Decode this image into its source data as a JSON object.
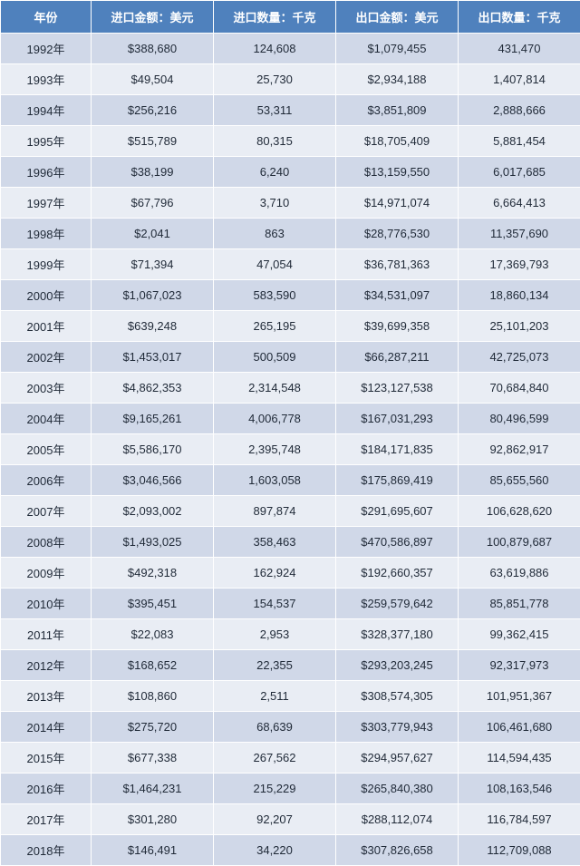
{
  "table": {
    "header_bg": "#4f81bd",
    "header_color": "#ffffff",
    "row_odd_bg": "#d0d8e8",
    "row_even_bg": "#e9edf4",
    "border_color": "#ffffff",
    "font_size": 13,
    "columns": [
      {
        "key": "year",
        "label": "年份",
        "align": "center"
      },
      {
        "key": "import_value",
        "label": "进口金额：美元",
        "align": "center"
      },
      {
        "key": "import_qty",
        "label": "进口数量：千克",
        "align": "center"
      },
      {
        "key": "export_value",
        "label": "出口金额：美元",
        "align": "center"
      },
      {
        "key": "export_qty",
        "label": "出口数量：千克",
        "align": "center"
      }
    ],
    "rows": [
      {
        "year": "1992年",
        "import_value": "$388,680",
        "import_qty": "124,608",
        "export_value": "$1,079,455",
        "export_qty": "431,470"
      },
      {
        "year": "1993年",
        "import_value": "$49,504",
        "import_qty": "25,730",
        "export_value": "$2,934,188",
        "export_qty": "1,407,814"
      },
      {
        "year": "1994年",
        "import_value": "$256,216",
        "import_qty": "53,311",
        "export_value": "$3,851,809",
        "export_qty": "2,888,666"
      },
      {
        "year": "1995年",
        "import_value": "$515,789",
        "import_qty": "80,315",
        "export_value": "$18,705,409",
        "export_qty": "5,881,454"
      },
      {
        "year": "1996年",
        "import_value": "$38,199",
        "import_qty": "6,240",
        "export_value": "$13,159,550",
        "export_qty": "6,017,685"
      },
      {
        "year": "1997年",
        "import_value": "$67,796",
        "import_qty": "3,710",
        "export_value": "$14,971,074",
        "export_qty": "6,664,413"
      },
      {
        "year": "1998年",
        "import_value": "$2,041",
        "import_qty": "863",
        "export_value": "$28,776,530",
        "export_qty": "11,357,690"
      },
      {
        "year": "1999年",
        "import_value": "$71,394",
        "import_qty": "47,054",
        "export_value": "$36,781,363",
        "export_qty": "17,369,793"
      },
      {
        "year": "2000年",
        "import_value": "$1,067,023",
        "import_qty": "583,590",
        "export_value": "$34,531,097",
        "export_qty": "18,860,134"
      },
      {
        "year": "2001年",
        "import_value": "$639,248",
        "import_qty": "265,195",
        "export_value": "$39,699,358",
        "export_qty": "25,101,203"
      },
      {
        "year": "2002年",
        "import_value": "$1,453,017",
        "import_qty": "500,509",
        "export_value": "$66,287,211",
        "export_qty": "42,725,073"
      },
      {
        "year": "2003年",
        "import_value": "$4,862,353",
        "import_qty": "2,314,548",
        "export_value": "$123,127,538",
        "export_qty": "70,684,840"
      },
      {
        "year": "2004年",
        "import_value": "$9,165,261",
        "import_qty": "4,006,778",
        "export_value": "$167,031,293",
        "export_qty": "80,496,599"
      },
      {
        "year": "2005年",
        "import_value": "$5,586,170",
        "import_qty": "2,395,748",
        "export_value": "$184,171,835",
        "export_qty": "92,862,917"
      },
      {
        "year": "2006年",
        "import_value": "$3,046,566",
        "import_qty": "1,603,058",
        "export_value": "$175,869,419",
        "export_qty": "85,655,560"
      },
      {
        "year": "2007年",
        "import_value": "$2,093,002",
        "import_qty": "897,874",
        "export_value": "$291,695,607",
        "export_qty": "106,628,620"
      },
      {
        "year": "2008年",
        "import_value": "$1,493,025",
        "import_qty": "358,463",
        "export_value": "$470,586,897",
        "export_qty": "100,879,687"
      },
      {
        "year": "2009年",
        "import_value": "$492,318",
        "import_qty": "162,924",
        "export_value": "$192,660,357",
        "export_qty": "63,619,886"
      },
      {
        "year": "2010年",
        "import_value": "$395,451",
        "import_qty": "154,537",
        "export_value": "$259,579,642",
        "export_qty": "85,851,778"
      },
      {
        "year": "2011年",
        "import_value": "$22,083",
        "import_qty": "2,953",
        "export_value": "$328,377,180",
        "export_qty": "99,362,415"
      },
      {
        "year": "2012年",
        "import_value": "$168,652",
        "import_qty": "22,355",
        "export_value": "$293,203,245",
        "export_qty": "92,317,973"
      },
      {
        "year": "2013年",
        "import_value": "$108,860",
        "import_qty": "2,511",
        "export_value": "$308,574,305",
        "export_qty": "101,951,367"
      },
      {
        "year": "2014年",
        "import_value": "$275,720",
        "import_qty": "68,639",
        "export_value": "$303,779,943",
        "export_qty": "106,461,680"
      },
      {
        "year": "2015年",
        "import_value": "$677,338",
        "import_qty": "267,562",
        "export_value": "$294,957,627",
        "export_qty": "114,594,435"
      },
      {
        "year": "2016年",
        "import_value": "$1,464,231",
        "import_qty": "215,229",
        "export_value": "$265,840,380",
        "export_qty": "108,163,546"
      },
      {
        "year": "2017年",
        "import_value": "$301,280",
        "import_qty": "92,207",
        "export_value": "$288,112,074",
        "export_qty": "116,784,597"
      },
      {
        "year": "2018年",
        "import_value": "$146,491",
        "import_qty": "34,220",
        "export_value": "$307,826,658",
        "export_qty": "112,709,088"
      }
    ]
  }
}
